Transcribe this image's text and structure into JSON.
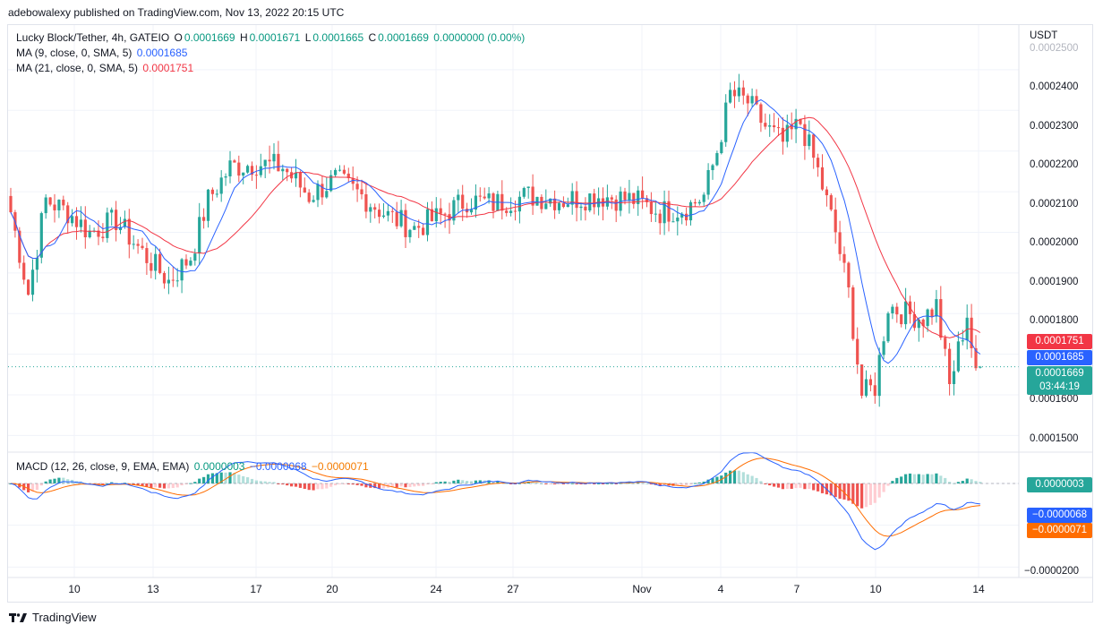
{
  "publisher": "adebowalexy published on TradingView.com, Nov 13, 2022 20:15 UTC",
  "legend": {
    "symbol": "Lucky Block/Tether, 4h, GATEIO",
    "o_label": "O",
    "o": "0.0001669",
    "h_label": "H",
    "h": "0.0001671",
    "l_label": "L",
    "l": "0.0001665",
    "c_label": "C",
    "c": "0.0001669",
    "change": "0.0000000 (0.00%)",
    "ma9_label": "MA (9, close, 0, SMA, 5)",
    "ma9_value": "0.0001685",
    "ma21_label": "MA (21, close, 0, SMA, 5)",
    "ma21_value": "0.0001751",
    "macd_label": "MACD (12, 26, close, 9, EMA, EMA)",
    "macd_hist": "0.0000003",
    "macd_line": "−0.0000068",
    "macd_signal": "−0.0000071"
  },
  "price_axis": {
    "unit": "USDT",
    "ticks": [
      "0.0002500",
      "0.0002400",
      "0.0002300",
      "0.0002200",
      "0.0002100",
      "0.0002000",
      "0.0001900",
      "0.0001800",
      "0.0001600",
      "0.0001500"
    ]
  },
  "macd_axis": {
    "ticks": [
      "−0.0000200"
    ]
  },
  "badges": {
    "ma21": "0.0001751",
    "ma9": "0.0001685",
    "price": "0.0001669",
    "countdown": "03:44:19",
    "macd_hist": "0.0000003",
    "macd_line": "−0.0000068",
    "macd_signal": "−0.0000071"
  },
  "time_axis": [
    "10",
    "13",
    "17",
    "20",
    "24",
    "27",
    "Nov",
    "4",
    "7",
    "10",
    "14"
  ],
  "footer": "TradingView",
  "colors": {
    "up": "#26a69a",
    "down": "#ef5350",
    "ma9": "#2962ff",
    "ma21": "#f23645",
    "macd": "#2962ff",
    "signal": "#ff6d00",
    "hist_up": "#26a69a",
    "hist_up_fade": "#b2dfdb",
    "hist_down": "#ef5350",
    "hist_down_fade": "#ffcdd2"
  },
  "chart_data": [
    {
      "type": "candlestick",
      "title": "Lucky Block/Tether, 4h, GATEIO",
      "ylabel": "USDT",
      "ylim": [
        0.000147,
        0.000251
      ],
      "x_ticks": [
        "10",
        "13",
        "17",
        "20",
        "24",
        "27",
        "Nov",
        "4",
        "7",
        "10",
        "14"
      ],
      "anchors": [
        {
          "i": 0,
          "p": 0.000205
        },
        {
          "i": 4,
          "p": 0.000185
        },
        {
          "i": 8,
          "p": 0.000208
        },
        {
          "i": 13,
          "p": 0.000205
        },
        {
          "i": 18,
          "p": 0.0002
        },
        {
          "i": 24,
          "p": 0.000203
        },
        {
          "i": 30,
          "p": 0.000195
        },
        {
          "i": 36,
          "p": 0.000188
        },
        {
          "i": 41,
          "p": 0.000194
        },
        {
          "i": 45,
          "p": 0.000208
        },
        {
          "i": 50,
          "p": 0.000216
        },
        {
          "i": 56,
          "p": 0.000217
        },
        {
          "i": 62,
          "p": 0.000216
        },
        {
          "i": 68,
          "p": 0.000209
        },
        {
          "i": 74,
          "p": 0.000213
        },
        {
          "i": 80,
          "p": 0.000209
        },
        {
          "i": 86,
          "p": 0.000204
        },
        {
          "i": 92,
          "p": 0.000201
        },
        {
          "i": 98,
          "p": 0.000204
        },
        {
          "i": 104,
          "p": 0.000208
        },
        {
          "i": 110,
          "p": 0.000207
        },
        {
          "i": 118,
          "p": 0.000209
        },
        {
          "i": 126,
          "p": 0.000208
        },
        {
          "i": 134,
          "p": 0.000209
        },
        {
          "i": 142,
          "p": 0.000208
        },
        {
          "i": 148,
          "p": 0.000205
        },
        {
          "i": 154,
          "p": 0.000206
        },
        {
          "i": 158,
          "p": 0.000209
        },
        {
          "i": 161,
          "p": 0.00022
        },
        {
          "i": 164,
          "p": 0.000234
        },
        {
          "i": 168,
          "p": 0.000232
        },
        {
          "i": 172,
          "p": 0.000226
        },
        {
          "i": 176,
          "p": 0.000222
        },
        {
          "i": 180,
          "p": 0.000227
        },
        {
          "i": 184,
          "p": 0.000215
        },
        {
          "i": 188,
          "p": 0.0002
        },
        {
          "i": 191,
          "p": 0.000185
        },
        {
          "i": 194,
          "p": 0.00016
        },
        {
          "i": 197,
          "p": 0.000162
        },
        {
          "i": 200,
          "p": 0.000182
        },
        {
          "i": 204,
          "p": 0.00018
        },
        {
          "i": 208,
          "p": 0.000179
        },
        {
          "i": 211,
          "p": 0.000182
        },
        {
          "i": 214,
          "p": 0.000162
        },
        {
          "i": 218,
          "p": 0.00018
        },
        {
          "i": 220,
          "p": 0.000164
        },
        {
          "i": 221,
          "p": 0.0001669
        }
      ],
      "series": [
        {
          "name": "MA (9, close, 0, SMA, 5)",
          "last": 0.0001685
        },
        {
          "name": "MA (21, close, 0, SMA, 5)",
          "last": 0.0001751
        }
      ],
      "last": {
        "open": 0.0001669,
        "high": 0.0001671,
        "low": 0.0001665,
        "close": 0.0001669
      }
    },
    {
      "type": "bar",
      "title": "MACD (12, 26, close, 9, EMA, EMA)",
      "ylim": [
        -2.25e-05,
        7.5e-06
      ],
      "y_ticks": [
        "−0.0000200"
      ],
      "series": [
        {
          "name": "Histogram",
          "last": 3e-07
        },
        {
          "name": "MACD",
          "last": -6.8e-06
        },
        {
          "name": "Signal",
          "last": -7.1e-06
        }
      ]
    }
  ]
}
